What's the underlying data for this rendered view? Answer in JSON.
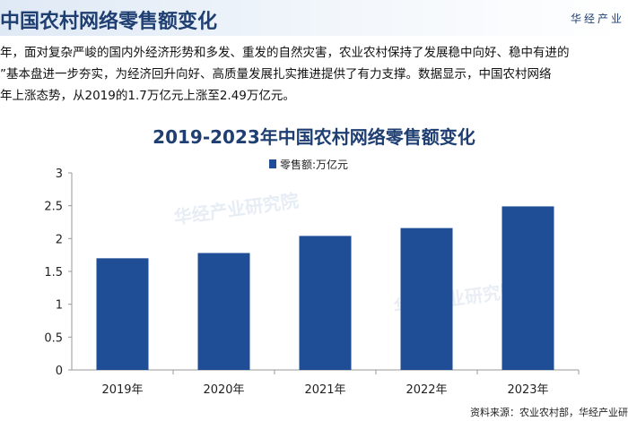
{
  "header": {
    "title": "中国农村网络零售额变化",
    "brand": "华经产业"
  },
  "paragraph": [
    "年，面对复杂严峻的国内外经济形势和多发、重发的自然灾害，农业农村保持了发展稳中向好、稳中有进的",
    "”基本盘进一步夯实，为经济回升向好、高质量发展扎实推进提供了有力支撑。数据显示，中国农村网络",
    "年上涨态势，从2019的1.7万亿元上涨至2.49万亿元。"
  ],
  "watermark": "华经产业研究院",
  "source": "资料来源：农业农村部，华经产业研",
  "chart_data": {
    "type": "bar",
    "title": "2019-2023年中国农村网络零售额变化",
    "categories": [
      "2019年",
      "2020年",
      "2021年",
      "2022年",
      "2023年"
    ],
    "series": [
      {
        "name": "零售额:万亿元",
        "values": [
          1.7,
          1.78,
          2.04,
          2.16,
          2.49
        ],
        "color": "#1f4e96"
      }
    ],
    "yticks": [
      "0",
      "0.5",
      "1",
      "1.5",
      "2",
      "2.5",
      "3"
    ],
    "ylim": [
      0,
      3
    ],
    "grid": false,
    "legend": "top-center"
  }
}
